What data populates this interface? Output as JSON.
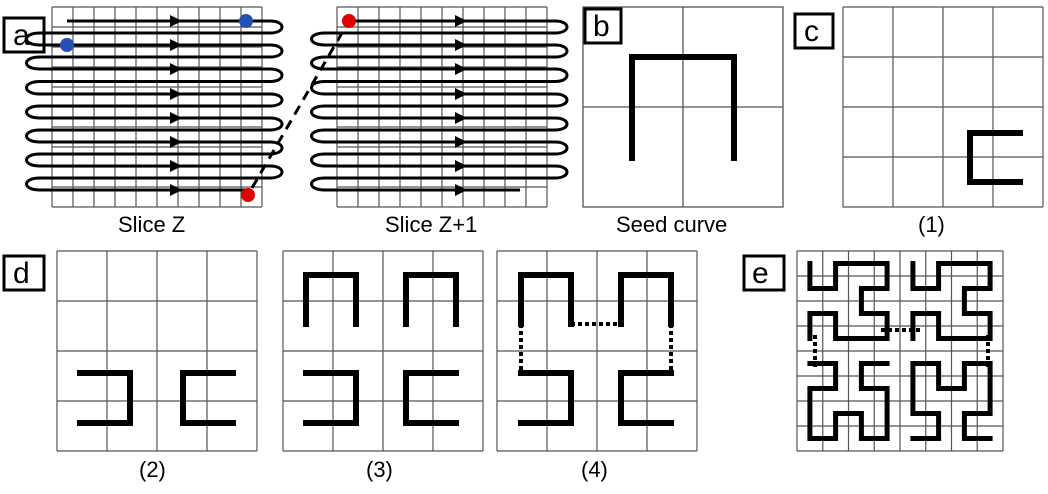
{
  "panels": {
    "a": {
      "tag": "a",
      "left_caption": "Slice Z",
      "right_caption": "Slice Z+1"
    },
    "b": {
      "tag": "b",
      "caption": "Seed curve"
    },
    "c": {
      "tag": "c",
      "caption": "(1)"
    },
    "d": {
      "tag": "d",
      "captions": [
        "(2)",
        "(3)",
        "(4)"
      ]
    },
    "e": {
      "tag": "e"
    }
  },
  "colors": {
    "grid": "#555555",
    "curve": "#000000",
    "start_dot": "#2450b4",
    "end_dot": "#e00000",
    "background": "#ffffff"
  }
}
